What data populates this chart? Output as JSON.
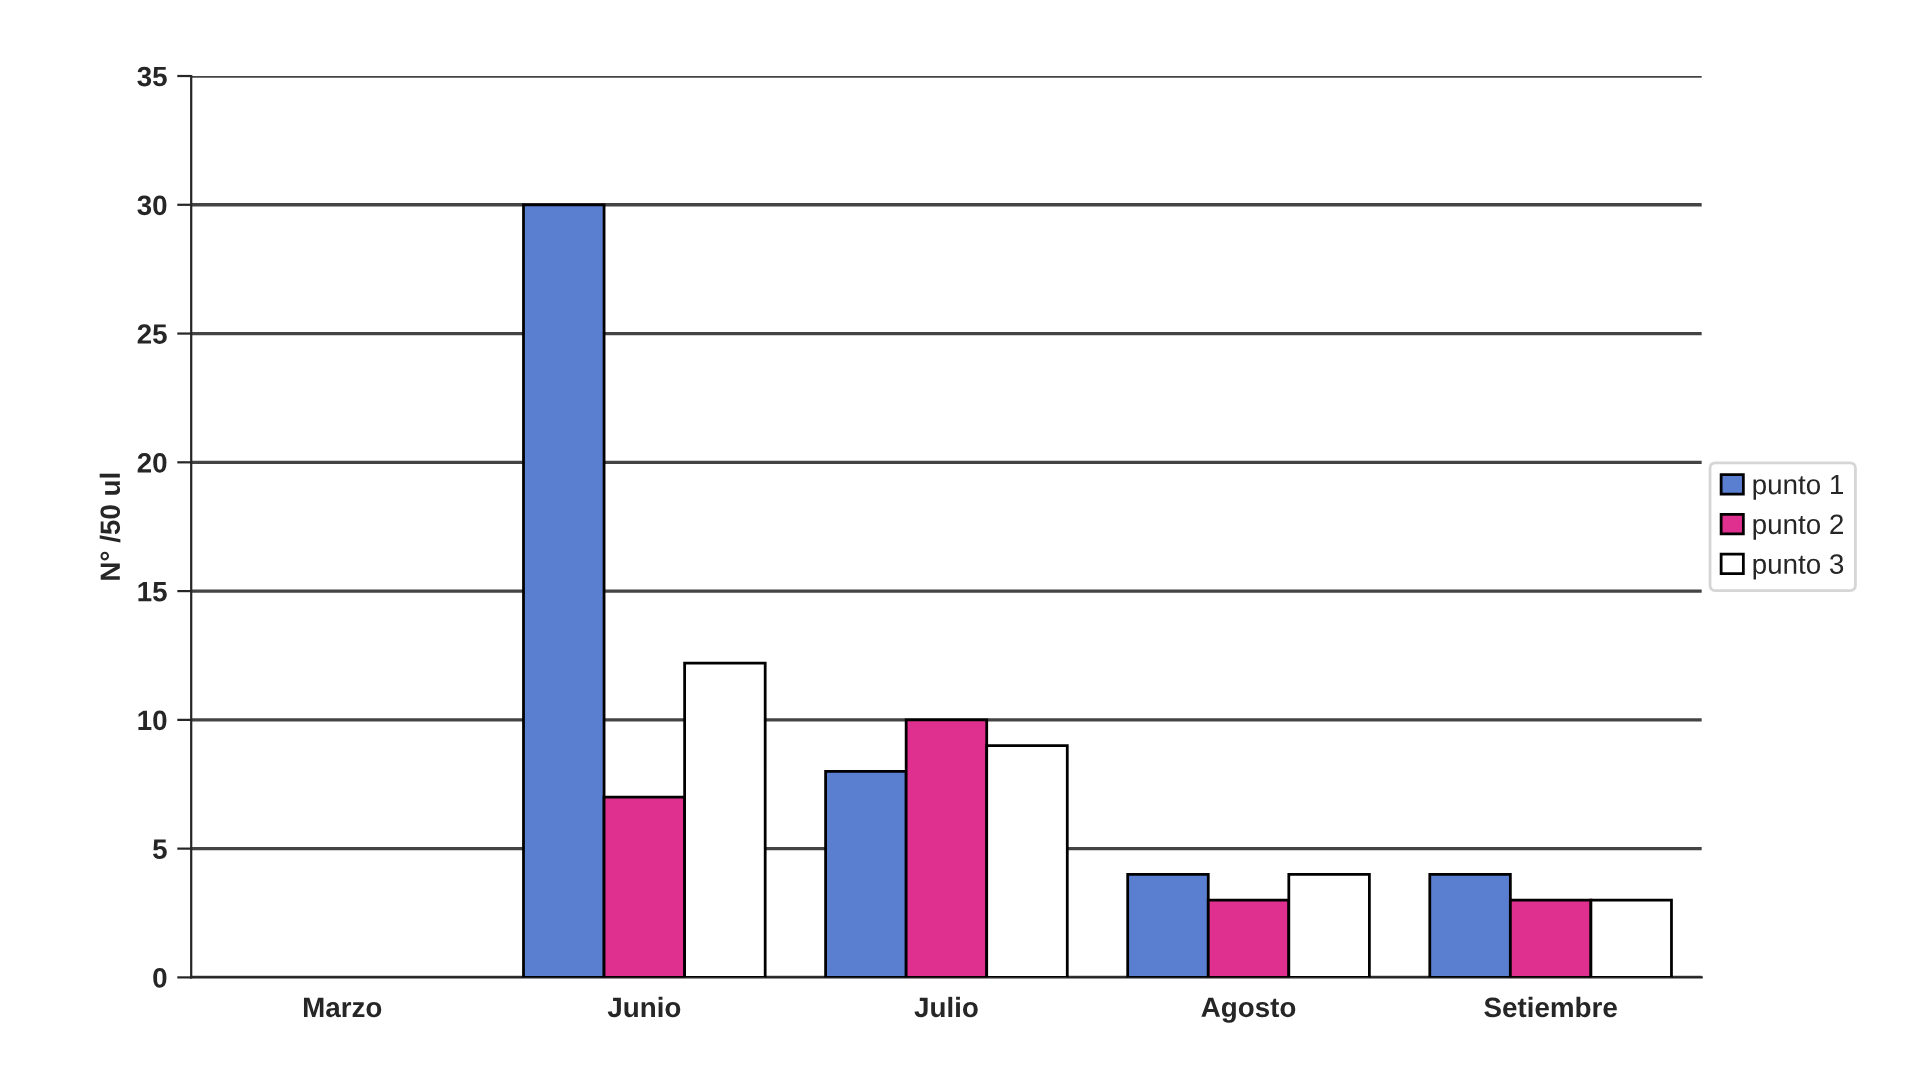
{
  "chart_data": {
    "type": "bar",
    "ylabel": "N° /50 ul",
    "categories": [
      "Marzo",
      "Junio",
      "Julio",
      "Agosto",
      "Setiembre"
    ],
    "series": [
      {
        "name": "punto 1",
        "color": "#5b7fd0",
        "values": [
          null,
          30,
          8,
          4,
          4
        ]
      },
      {
        "name": "punto 2",
        "color": "#e0308f",
        "values": [
          null,
          7,
          10,
          3,
          3
        ]
      },
      {
        "name": "punto 3",
        "color": "#ffffff",
        "values": [
          null,
          12.2,
          9,
          4,
          3
        ]
      }
    ],
    "ylim": [
      0,
      35
    ],
    "yticks": [
      0,
      5,
      10,
      15,
      20,
      25,
      30,
      35
    ],
    "grid": "y",
    "legend": "right"
  }
}
